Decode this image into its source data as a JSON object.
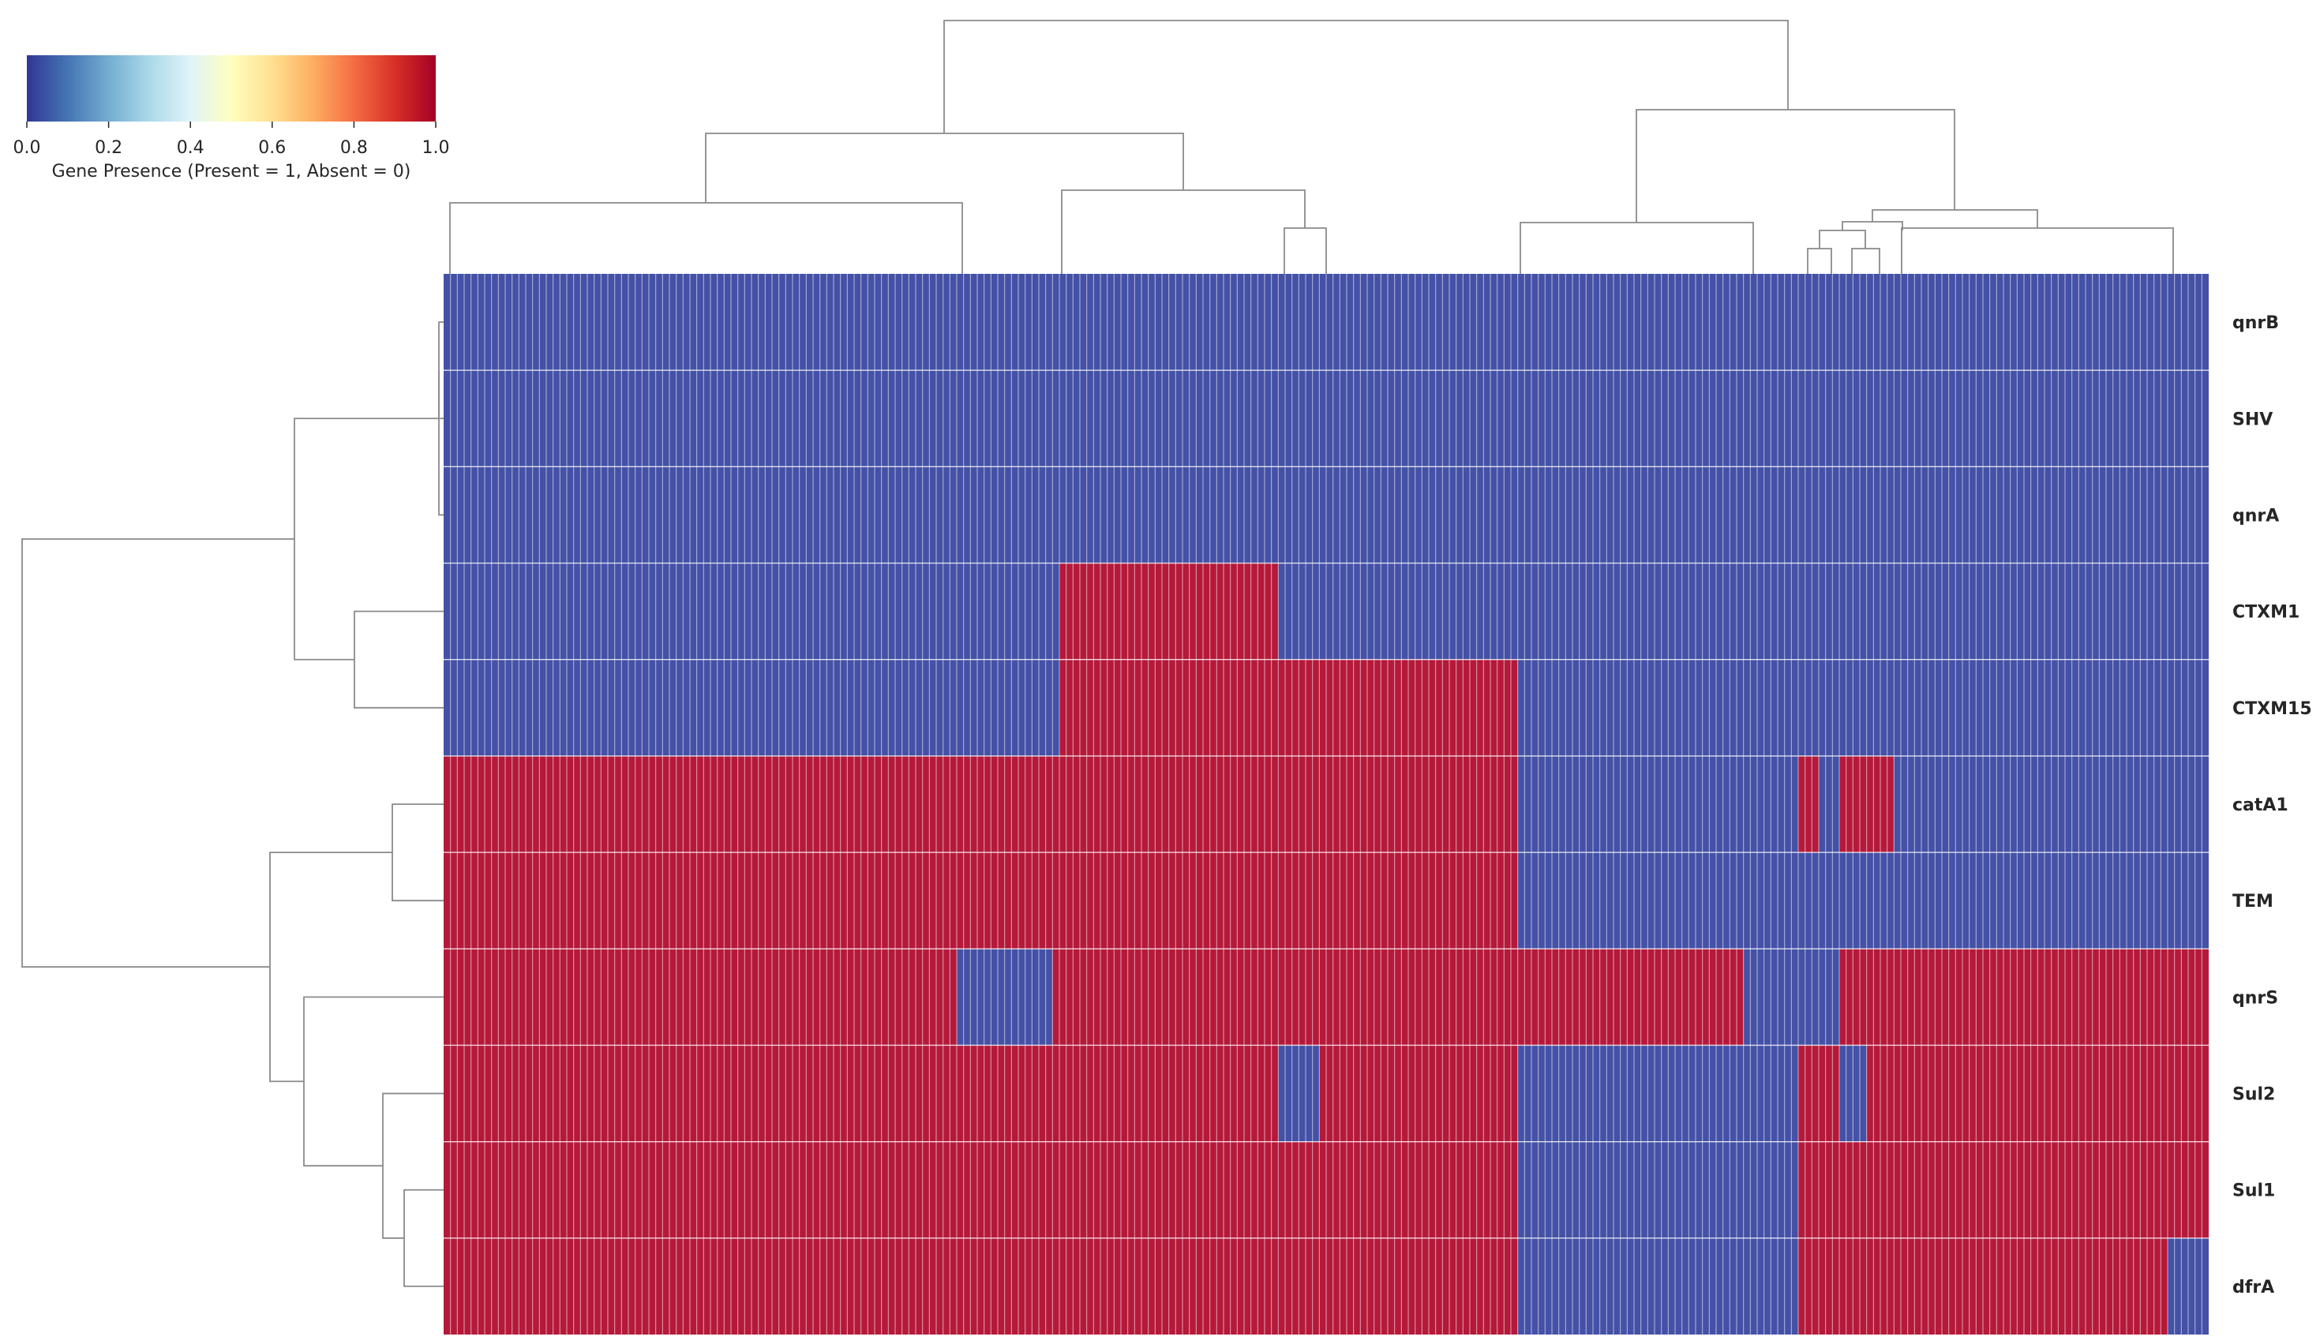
{
  "chart_data": {
    "type": "heatmap",
    "title": "",
    "xlabel": "",
    "ylabel": "",
    "colormap": {
      "name": "RdYlBu_r",
      "stops": [
        "#313695",
        "#4575b4",
        "#74add1",
        "#abd9e9",
        "#e0f3f8",
        "#ffffbf",
        "#fee090",
        "#fdae61",
        "#f46d43",
        "#d73027",
        "#a50026"
      ]
    },
    "colors": {
      "present": "#b5193a",
      "absent": "#4451a6",
      "grid": "#ffffff",
      "dendrogram": "#8a8a8a"
    },
    "colorbar": {
      "label": "Gene Presence (Present = 1, Absent = 0)",
      "ticks": [
        "0.0",
        "0.2",
        "0.4",
        "0.6",
        "0.8",
        "1.0"
      ],
      "range": [
        0,
        1
      ]
    },
    "n_samples": 258,
    "rows": [
      "qnrB",
      "SHV",
      "qnrA",
      "CTXM1",
      "CTXM15",
      "catA1",
      "TEM",
      "qnrS",
      "Sul2",
      "Sul1",
      "dfrA"
    ],
    "present_column_ranges": {
      "qnrB": [],
      "SHV": [],
      "qnrA": [],
      "CTXM1": [
        [
          90,
          121
        ]
      ],
      "CTXM15": [
        [
          90,
          156
        ]
      ],
      "catA1": [
        [
          0,
          156
        ],
        [
          198,
          200
        ],
        [
          204,
          211
        ]
      ],
      "TEM": [
        [
          0,
          156
        ]
      ],
      "qnrS": [
        [
          0,
          74
        ],
        [
          89,
          189
        ],
        [
          204,
          257
        ]
      ],
      "Sul2": [
        [
          0,
          121
        ],
        [
          128,
          156
        ],
        [
          198,
          203
        ],
        [
          208,
          257
        ]
      ],
      "Sul1": [
        [
          0,
          156
        ],
        [
          198,
          257
        ]
      ],
      "dfrA": [
        [
          0,
          156
        ],
        [
          198,
          251
        ]
      ]
    }
  }
}
